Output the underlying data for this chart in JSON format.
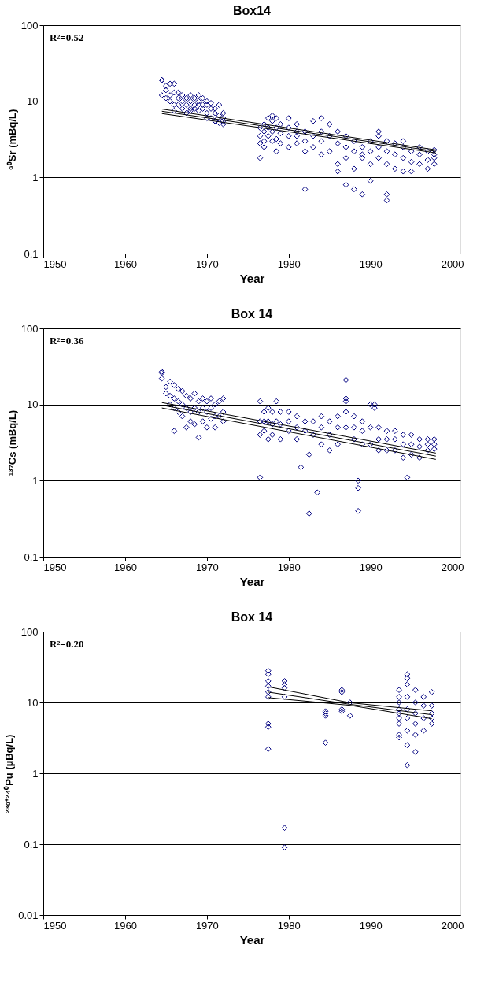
{
  "chart_data": [
    {
      "type": "scatter",
      "title": "Box14",
      "xlabel": "Year",
      "ylabel": "⁹⁰Sr (mBq/L)",
      "annotations": [
        "R²=0.52"
      ],
      "log": "y",
      "grid": "y",
      "xlim": [
        1950,
        2001
      ],
      "xticks": [
        1950,
        1960,
        1970,
        1980,
        1990,
        2000
      ],
      "ylim": [
        0.1,
        100
      ],
      "yticks": [
        0.1,
        1,
        10,
        100
      ],
      "series": [
        {
          "color": "#000080",
          "marker": "diamond",
          "x": [
            1964.5,
            1964.5,
            1964.5,
            1965,
            1965,
            1965,
            1965.5,
            1965.5,
            1965.5,
            1966,
            1966,
            1966,
            1966,
            1966.5,
            1966.5,
            1966.5,
            1967,
            1967,
            1967,
            1967.5,
            1967.5,
            1967.5,
            1968,
            1968,
            1968,
            1968,
            1968.5,
            1968.5,
            1968.5,
            1969,
            1969,
            1969,
            1969,
            1969.5,
            1969.5,
            1969.5,
            1970,
            1970,
            1970,
            1970,
            1970.5,
            1970.5,
            1970.5,
            1971,
            1971,
            1971,
            1971,
            1971.5,
            1971.5,
            1971.5,
            1972,
            1972,
            1972,
            1972,
            1976.5,
            1976.5,
            1976.5,
            1976.5,
            1977,
            1977,
            1977,
            1977,
            1977.5,
            1977.5,
            1977.5,
            1978,
            1978,
            1978,
            1978,
            1978.5,
            1978.5,
            1978.5,
            1978.5,
            1979,
            1979,
            1979,
            1980,
            1980,
            1980,
            1980,
            1981,
            1981,
            1981,
            1981,
            1982,
            1982,
            1982,
            1982,
            1983,
            1983,
            1983,
            1984,
            1984,
            1984,
            1984,
            1985,
            1985,
            1985,
            1986,
            1986,
            1986,
            1986,
            1987,
            1987,
            1987,
            1987,
            1988,
            1988,
            1988,
            1988,
            1989,
            1989,
            1989,
            1989,
            1990,
            1990,
            1990,
            1990,
            1991,
            1991,
            1991,
            1991,
            1992,
            1992,
            1992,
            1992,
            1992,
            1993,
            1993,
            1993,
            1994,
            1994,
            1994,
            1994,
            1995,
            1995,
            1995,
            1996,
            1996,
            1996,
            1997,
            1997,
            1997,
            1997.8,
            1997.8,
            1997.8,
            1997.8
          ],
          "values": [
            19,
            19,
            12,
            14,
            11,
            16,
            17,
            12,
            10,
            13,
            9,
            7.5,
            17,
            11,
            9,
            13,
            10,
            8,
            12,
            9,
            11,
            7,
            10,
            8,
            12,
            7.5,
            9,
            11,
            8,
            10,
            7.5,
            12,
            9,
            11,
            8,
            9,
            10,
            7,
            9,
            6,
            8,
            6,
            9.5,
            7,
            5.5,
            8,
            5.5,
            6.5,
            9,
            5.2,
            7,
            5.5,
            6,
            5,
            4.5,
            3.5,
            2.8,
            1.8,
            5,
            4,
            3,
            2.5,
            6,
            4.5,
            3.5,
            5.5,
            4,
            3,
            6.5,
            6,
            4.5,
            3.2,
            2.2,
            5,
            3.8,
            2.8,
            4.5,
            3.5,
            6,
            2.5,
            5,
            3.5,
            2.8,
            4,
            4,
            3,
            2.2,
            0.7,
            5.5,
            3.5,
            2.5,
            6,
            4,
            3,
            2,
            5,
            3.5,
            2.2,
            4,
            2.8,
            1.5,
            1.2,
            3.5,
            2.5,
            1.8,
            0.8,
            3,
            2.2,
            1.3,
            0.7,
            2.5,
            1.8,
            0.6,
            2,
            3,
            2.2,
            1.5,
            0.9,
            3.5,
            2.5,
            1.8,
            4,
            3,
            2.2,
            1.5,
            0.5,
            0.6,
            2.8,
            2,
            1.3,
            2.5,
            1.8,
            1.2,
            3,
            2.2,
            1.6,
            1.2,
            2,
            1.5,
            2.5,
            2.2,
            1.7,
            1.3,
            2,
            1.5,
            1.8,
            2.3
          ]
        },
        {
          "type": "line",
          "color": "#000000",
          "x": [
            1964.5,
            1998
          ],
          "values": [
            7.9,
            2.3
          ]
        },
        {
          "type": "line",
          "color": "#000000",
          "x": [
            1964.5,
            1998
          ],
          "values": [
            7.4,
            2.2
          ]
        },
        {
          "type": "line",
          "color": "#000000",
          "x": [
            1964.5,
            1998
          ],
          "values": [
            6.9,
            2.1
          ]
        }
      ]
    },
    {
      "type": "scatter",
      "title": "Box 14",
      "xlabel": "Year",
      "ylabel": "¹³⁷Cs (mBq/L)",
      "annotations": [
        "R²=0.36"
      ],
      "log": "y",
      "grid": "y",
      "xlim": [
        1950,
        2001
      ],
      "xticks": [
        1950,
        1960,
        1970,
        1980,
        1990,
        2000
      ],
      "ylim": [
        0.1,
        100
      ],
      "yticks": [
        0.1,
        1,
        10,
        100
      ],
      "series": [
        {
          "color": "#000080",
          "marker": "diamond",
          "x": [
            1964.5,
            1964.5,
            1964.5,
            1965,
            1965,
            1965.5,
            1965.5,
            1965.5,
            1966,
            1966,
            1966,
            1966,
            1966.5,
            1966.5,
            1966.5,
            1967,
            1967,
            1967,
            1967.5,
            1967.5,
            1967.5,
            1968,
            1968,
            1968,
            1968.5,
            1968.5,
            1968.5,
            1969,
            1969,
            1969,
            1969.5,
            1969.5,
            1969.5,
            1970,
            1970,
            1970,
            1970.5,
            1970.5,
            1970.5,
            1971,
            1971,
            1971,
            1971.5,
            1971.5,
            1972,
            1972,
            1972,
            1976.5,
            1976.5,
            1976.5,
            1976.5,
            1977,
            1977,
            1977,
            1977.5,
            1977.5,
            1977.5,
            1978,
            1978,
            1978,
            1978.5,
            1978.5,
            1979,
            1979,
            1979,
            1980,
            1980,
            1980,
            1981,
            1981,
            1981,
            1981.5,
            1982,
            1982,
            1982.5,
            1982.5,
            1983,
            1983,
            1983.5,
            1984,
            1984,
            1984,
            1985,
            1985,
            1985,
            1986,
            1986,
            1986,
            1987,
            1987,
            1987,
            1987,
            1987,
            1988,
            1988,
            1988,
            1988.5,
            1988.5,
            1988.5,
            1989,
            1989,
            1989,
            1990,
            1990,
            1990,
            1990.5,
            1990.5,
            1991,
            1991,
            1991,
            1992,
            1992,
            1992,
            1993,
            1993,
            1993,
            1994,
            1994,
            1994,
            1994.5,
            1995,
            1995,
            1995,
            1996,
            1996,
            1996,
            1997,
            1997,
            1997,
            1997.8,
            1997.8,
            1997.8
          ],
          "values": [
            27,
            26,
            22,
            17,
            14,
            20,
            13,
            10,
            18,
            12,
            9,
            4.5,
            16,
            11,
            8,
            15,
            10,
            7,
            13,
            9,
            5,
            12,
            8,
            6,
            14,
            9,
            5.5,
            11,
            8,
            3.7,
            12,
            9,
            6,
            11,
            8,
            5,
            12,
            9,
            6.5,
            10,
            7,
            5,
            11,
            7,
            12,
            8,
            6,
            11,
            6,
            4,
            1.1,
            8,
            6,
            4.5,
            9,
            6,
            3.5,
            8,
            5.5,
            4,
            11,
            6,
            8,
            5.5,
            3.5,
            8,
            6,
            4.5,
            7,
            5,
            3.5,
            1.5,
            6,
            4.5,
            0.37,
            2.2,
            6,
            4,
            0.7,
            7,
            5,
            3,
            6,
            4,
            2.5,
            7,
            5,
            3,
            21,
            12,
            11,
            8,
            5,
            7,
            5,
            3.5,
            1,
            0.8,
            0.4,
            6,
            4.5,
            3,
            10,
            5,
            3,
            10,
            9,
            5,
            3.5,
            2.5,
            4.5,
            3.5,
            2.5,
            4.5,
            3.5,
            2.5,
            4,
            3,
            2,
            1.1,
            4,
            3,
            2.2,
            3.5,
            2.8,
            2,
            3.5,
            3,
            2.5,
            3.5,
            3,
            2.6
          ]
        },
        {
          "type": "line",
          "color": "#000000",
          "x": [
            1964.5,
            1998
          ],
          "values": [
            10.6,
            2.3
          ]
        },
        {
          "type": "line",
          "color": "#000000",
          "x": [
            1964.5,
            1998
          ],
          "values": [
            9.8,
            2.1
          ]
        },
        {
          "type": "line",
          "color": "#000000",
          "x": [
            1964.5,
            1998
          ],
          "values": [
            9.0,
            1.9
          ]
        }
      ]
    },
    {
      "type": "scatter",
      "title": "Box 14",
      "xlabel": "Year",
      "ylabel": "²³⁹⁺²⁴⁰Pu (µBq/L)",
      "annotations": [
        "R²=0.20"
      ],
      "log": "y",
      "grid": "y",
      "xlim": [
        1950,
        2001
      ],
      "xticks": [
        1950,
        1960,
        1970,
        1980,
        1990,
        2000
      ],
      "ylim": [
        0.01,
        100
      ],
      "yticks": [
        0.01,
        0.1,
        1,
        10,
        100
      ],
      "series": [
        {
          "color": "#000080",
          "marker": "diamond",
          "x": [
            1977.5,
            1977.5,
            1977.5,
            1977.5,
            1977.5,
            1977.5,
            1977.5,
            1977.5,
            1977.5,
            1979.5,
            1979.5,
            1979.5,
            1979.5,
            1979.5,
            1979.5,
            1984.5,
            1984.5,
            1984.5,
            1984.5,
            1986.5,
            1986.5,
            1986.5,
            1986.5,
            1987.5,
            1987.5,
            1993.5,
            1993.5,
            1993.5,
            1993.5,
            1993.5,
            1993.5,
            1993.5,
            1993.5,
            1993.5,
            1994.5,
            1994.5,
            1994.5,
            1994.5,
            1994.5,
            1994.5,
            1994.5,
            1994.5,
            1994.5,
            1995.5,
            1995.5,
            1995.5,
            1995.5,
            1995.5,
            1995.5,
            1996.5,
            1996.5,
            1996.5,
            1996.5,
            1997.5,
            1997.5,
            1997.5,
            1997.5,
            1997.5
          ],
          "values": [
            28,
            25,
            20,
            17,
            14,
            12,
            5,
            4.5,
            2.2,
            20,
            18,
            16,
            12,
            0.17,
            0.09,
            7.5,
            6.5,
            7,
            2.7,
            15,
            14,
            8,
            7.5,
            10,
            6.5,
            15,
            12,
            10,
            8,
            7,
            6,
            5,
            3.5,
            3.2,
            25,
            22,
            18,
            12,
            8,
            6,
            4,
            2.5,
            1.3,
            15,
            10,
            7,
            5,
            3.5,
            2,
            12,
            9,
            6,
            4,
            14,
            9,
            7,
            6,
            5
          ]
        },
        {
          "type": "line",
          "color": "#000000",
          "x": [
            1977.5,
            1987.5,
            1997.5
          ],
          "values": [
            16.6,
            9.9,
            7.6
          ]
        },
        {
          "type": "line",
          "color": "#000000",
          "x": [
            1977.5,
            1987.5,
            1997.5
          ],
          "values": [
            14,
            9.4,
            6.7
          ]
        },
        {
          "type": "line",
          "color": "#000000",
          "x": [
            1977.5,
            1987.5,
            1997.5
          ],
          "values": [
            11.7,
            9.1,
            5.9
          ]
        }
      ]
    }
  ]
}
